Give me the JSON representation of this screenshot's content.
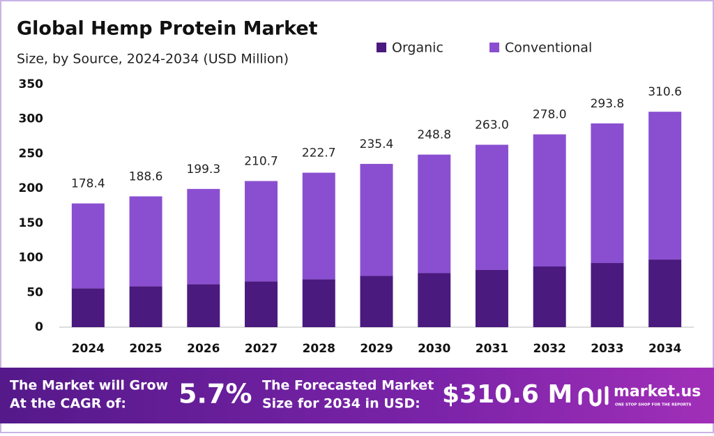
{
  "chart_data": {
    "type": "stacked_bar",
    "title": "Global Hemp Protein Market",
    "subtitle": "Size, by Source, 2024-2034 (USD Million)",
    "categories": [
      "2024",
      "2025",
      "2026",
      "2027",
      "2028",
      "2029",
      "2030",
      "2031",
      "2032",
      "2033",
      "2034"
    ],
    "series": [
      {
        "name": "Organic",
        "color": "#4a1a7e",
        "values": [
          56,
          59,
          62,
          66,
          69,
          74,
          78,
          82.5,
          87.5,
          92.5,
          97.5
        ]
      },
      {
        "name": "Conventional",
        "color": "#8a4fd0",
        "values": [
          122.4,
          129.6,
          137.3,
          144.7,
          153.7,
          161.4,
          170.8,
          180.5,
          190.5,
          201.3,
          213.1
        ]
      }
    ],
    "totals": [
      178.4,
      188.6,
      199.3,
      210.7,
      222.7,
      235.4,
      248.8,
      263,
      278,
      293.8,
      310.6
    ],
    "value_labels": [
      "178.4",
      "188.6",
      "199.3",
      "210.7",
      "222.7",
      "235.4",
      "248.8",
      "263.0",
      "278.0",
      "293.8",
      "310.6"
    ],
    "ylim": [
      0,
      350
    ],
    "yticks": [
      0,
      50,
      100,
      150,
      200,
      250,
      300,
      350
    ],
    "grid": false
  },
  "footer": {
    "cagr_text": [
      "The Market will Grow",
      "At the CAGR of:"
    ],
    "cagr_value": "5.7%",
    "forecast_text": [
      "The Forecasted Market",
      "Size for 2034 in USD:"
    ],
    "forecast_value": "$310.6 M",
    "brand": "market.us",
    "tagline": "ONE STOP SHOP FOR THE REPORTS"
  }
}
